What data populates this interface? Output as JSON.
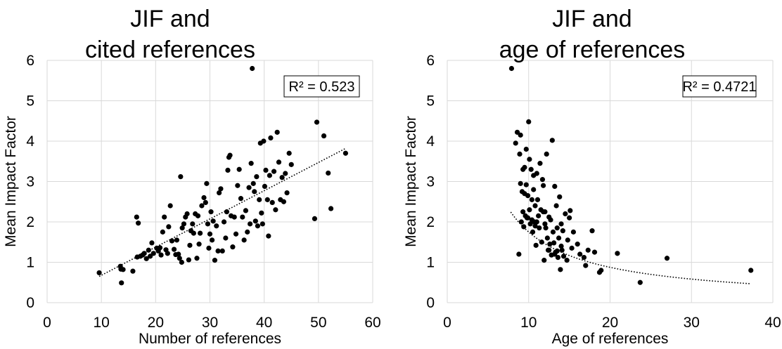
{
  "chart_data": [
    {
      "type": "scatter",
      "title_lines": [
        "JIF and",
        "cited references"
      ],
      "xlabel": "Number of references",
      "ylabel": "Mean Impact Factor",
      "xlim": [
        0,
        60
      ],
      "ylim": [
        0,
        6
      ],
      "x_ticks": [
        0,
        10,
        20,
        30,
        40,
        50,
        60
      ],
      "y_ticks": [
        0,
        1,
        2,
        3,
        4,
        5,
        6
      ],
      "grid": true,
      "r2_label": "R² = 0.523",
      "trendline": {
        "kind": "linear",
        "x_start": 9.6,
        "y_start": 0.65,
        "x_end": 55.0,
        "y_end": 3.82
      },
      "points": [
        [
          9.6,
          0.74
        ],
        [
          13.5,
          0.9
        ],
        [
          13.6,
          0.83
        ],
        [
          13.7,
          0.49
        ],
        [
          14.0,
          0.82
        ],
        [
          15.8,
          0.78
        ],
        [
          16.5,
          2.12
        ],
        [
          16.8,
          1.97
        ],
        [
          16.6,
          1.13
        ],
        [
          17.2,
          1.15
        ],
        [
          17.6,
          1.18
        ],
        [
          17.9,
          1.22
        ],
        [
          18.3,
          1.09
        ],
        [
          18.7,
          1.3
        ],
        [
          19.0,
          1.15
        ],
        [
          19.3,
          1.48
        ],
        [
          19.6,
          1.22
        ],
        [
          20.2,
          1.35
        ],
        [
          20.5,
          1.28
        ],
        [
          20.8,
          1.36
        ],
        [
          21.0,
          1.18
        ],
        [
          21.3,
          1.75
        ],
        [
          21.6,
          2.12
        ],
        [
          21.9,
          1.31
        ],
        [
          22.2,
          1.22
        ],
        [
          22.4,
          1.88
        ],
        [
          22.7,
          2.4
        ],
        [
          23.0,
          1.53
        ],
        [
          23.4,
          1.32
        ],
        [
          23.7,
          1.19
        ],
        [
          23.9,
          1.55
        ],
        [
          24.2,
          1.2
        ],
        [
          24.4,
          1.1
        ],
        [
          24.6,
          3.12
        ],
        [
          24.8,
          1.0
        ],
        [
          24.9,
          1.85
        ],
        [
          25.2,
          1.95
        ],
        [
          25.5,
          2.12
        ],
        [
          25.8,
          2.2
        ],
        [
          26.1,
          1.06
        ],
        [
          26.3,
          1.42
        ],
        [
          26.5,
          1.78
        ],
        [
          26.8,
          1.95
        ],
        [
          27.0,
          1.72
        ],
        [
          27.3,
          2.2
        ],
        [
          27.6,
          1.1
        ],
        [
          27.8,
          2.15
        ],
        [
          28.0,
          1.45
        ],
        [
          28.2,
          1.72
        ],
        [
          28.5,
          2.4
        ],
        [
          28.9,
          2.6
        ],
        [
          29.2,
          2.48
        ],
        [
          29.4,
          2.95
        ],
        [
          29.6,
          1.95
        ],
        [
          29.8,
          1.35
        ],
        [
          30.0,
          1.7
        ],
        [
          30.2,
          2.25
        ],
        [
          30.4,
          1.55
        ],
        [
          30.6,
          2.02
        ],
        [
          30.9,
          1.05
        ],
        [
          31.2,
          1.9
        ],
        [
          31.5,
          1.28
        ],
        [
          31.7,
          2.72
        ],
        [
          32.0,
          2.82
        ],
        [
          32.3,
          1.28
        ],
        [
          32.6,
          2.0
        ],
        [
          32.9,
          1.6
        ],
        [
          33.1,
          2.25
        ],
        [
          33.3,
          3.28
        ],
        [
          33.5,
          3.6
        ],
        [
          33.7,
          3.65
        ],
        [
          33.9,
          2.15
        ],
        [
          34.2,
          1.38
        ],
        [
          34.5,
          2.12
        ],
        [
          34.8,
          1.7
        ],
        [
          35.1,
          2.9
        ],
        [
          35.4,
          3.3
        ],
        [
          35.7,
          2.58
        ],
        [
          36.0,
          2.12
        ],
        [
          36.3,
          1.55
        ],
        [
          36.6,
          2.28
        ],
        [
          36.9,
          1.75
        ],
        [
          37.2,
          2.85
        ],
        [
          37.4,
          1.95
        ],
        [
          37.6,
          3.45
        ],
        [
          37.8,
          5.8
        ],
        [
          38.0,
          2.95
        ],
        [
          38.2,
          2.75
        ],
        [
          38.4,
          2.02
        ],
        [
          38.6,
          3.12
        ],
        [
          38.8,
          1.9
        ],
        [
          39.1,
          2.55
        ],
        [
          39.3,
          3.95
        ],
        [
          39.5,
          2.22
        ],
        [
          39.7,
          1.95
        ],
        [
          39.9,
          4.0
        ],
        [
          40.1,
          2.88
        ],
        [
          40.3,
          3.28
        ],
        [
          40.6,
          2.55
        ],
        [
          40.8,
          1.65
        ],
        [
          41.0,
          3.15
        ],
        [
          41.2,
          4.08
        ],
        [
          41.5,
          2.48
        ],
        [
          41.8,
          3.25
        ],
        [
          42.1,
          2.3
        ],
        [
          42.4,
          4.22
        ],
        [
          42.7,
          3.48
        ],
        [
          43.0,
          2.55
        ],
        [
          43.3,
          3.1
        ],
        [
          43.6,
          2.5
        ],
        [
          43.9,
          3.2
        ],
        [
          44.2,
          2.72
        ],
        [
          44.6,
          3.7
        ],
        [
          45.0,
          3.42
        ],
        [
          49.3,
          2.08
        ],
        [
          49.7,
          4.47
        ],
        [
          51.0,
          4.13
        ],
        [
          51.8,
          3.21
        ],
        [
          52.3,
          2.33
        ],
        [
          55.0,
          3.7
        ]
      ]
    },
    {
      "type": "scatter",
      "title_lines": [
        "JIF and",
        "age of references"
      ],
      "xlabel": "Age of references",
      "ylabel": "Mean Impact Factor",
      "xlim": [
        0,
        40
      ],
      "ylim": [
        0,
        6
      ],
      "x_ticks": [
        0,
        10,
        20,
        30,
        40
      ],
      "y_ticks": [
        0,
        1,
        2,
        3,
        4,
        5,
        6
      ],
      "grid": true,
      "r2_label": "R² = 0.4721",
      "trendline": {
        "kind": "power",
        "a": 17.5,
        "b": -1.0,
        "x_start": 7.8,
        "x_end": 37.3
      },
      "points": [
        [
          7.9,
          5.8
        ],
        [
          8.4,
          3.95
        ],
        [
          8.6,
          4.22
        ],
        [
          8.8,
          1.2
        ],
        [
          8.9,
          3.68
        ],
        [
          9.0,
          4.15
        ],
        [
          9.0,
          2.95
        ],
        [
          9.1,
          2.0
        ],
        [
          9.2,
          2.75
        ],
        [
          9.3,
          3.3
        ],
        [
          9.3,
          2.25
        ],
        [
          9.4,
          1.88
        ],
        [
          9.5,
          2.7
        ],
        [
          9.6,
          2.15
        ],
        [
          9.7,
          3.8
        ],
        [
          9.7,
          2.92
        ],
        [
          9.8,
          2.1
        ],
        [
          9.9,
          2.65
        ],
        [
          10.0,
          4.48
        ],
        [
          10.1,
          3.55
        ],
        [
          10.1,
          2.3
        ],
        [
          10.2,
          1.95
        ],
        [
          10.3,
          3.3
        ],
        [
          10.4,
          2.05
        ],
        [
          10.5,
          1.75
        ],
        [
          10.6,
          2.8
        ],
        [
          10.6,
          3.15
        ],
        [
          10.7,
          2.0
        ],
        [
          10.8,
          2.4
        ],
        [
          10.9,
          1.42
        ],
        [
          11.0,
          3.2
        ],
        [
          11.1,
          2.55
        ],
        [
          11.2,
          2.15
        ],
        [
          11.3,
          1.85
        ],
        [
          11.4,
          3.45
        ],
        [
          11.5,
          2.3
        ],
        [
          11.6,
          1.5
        ],
        [
          11.7,
          3.05
        ],
        [
          11.8,
          2.9
        ],
        [
          11.9,
          1.05
        ],
        [
          12.0,
          2.25
        ],
        [
          12.1,
          1.85
        ],
        [
          12.2,
          3.68
        ],
        [
          12.3,
          1.6
        ],
        [
          12.4,
          1.3
        ],
        [
          12.5,
          2.12
        ],
        [
          12.6,
          1.45
        ],
        [
          12.7,
          2.05
        ],
        [
          12.8,
          1.18
        ],
        [
          12.9,
          4.02
        ],
        [
          13.0,
          1.75
        ],
        [
          13.1,
          1.48
        ],
        [
          13.2,
          2.88
        ],
        [
          13.3,
          1.25
        ],
        [
          13.4,
          2.4
        ],
        [
          13.5,
          1.85
        ],
        [
          13.6,
          1.12
        ],
        [
          13.7,
          1.6
        ],
        [
          13.8,
          2.62
        ],
        [
          13.9,
          0.82
        ],
        [
          14.0,
          1.95
        ],
        [
          14.1,
          1.3
        ],
        [
          14.2,
          1.78
        ],
        [
          14.3,
          1.15
        ],
        [
          14.5,
          2.2
        ],
        [
          14.7,
          1.05
        ],
        [
          14.8,
          1.55
        ],
        [
          15.0,
          2.1
        ],
        [
          15.1,
          2.28
        ],
        [
          15.3,
          1.35
        ],
        [
          15.5,
          1.75
        ],
        [
          16.0,
          1.45
        ],
        [
          16.3,
          1.2
        ],
        [
          16.8,
          1.12
        ],
        [
          17.0,
          0.92
        ],
        [
          17.3,
          1.3
        ],
        [
          17.8,
          1.78
        ],
        [
          18.1,
          1.25
        ],
        [
          18.7,
          0.75
        ],
        [
          18.9,
          0.8
        ],
        [
          20.9,
          1.22
        ],
        [
          23.7,
          0.5
        ],
        [
          27.0,
          1.1
        ],
        [
          37.3,
          0.8
        ],
        [
          9.5,
          3.35
        ],
        [
          10.4,
          2.55
        ],
        [
          11.8,
          2.25
        ],
        [
          12.5,
          1.3
        ],
        [
          13.2,
          1.2
        ],
        [
          14.0,
          1.4
        ],
        [
          10.8,
          1.9
        ],
        [
          9.9,
          2.1
        ],
        [
          11.0,
          2.0
        ],
        [
          12.0,
          1.95
        ],
        [
          13.5,
          1.28
        ]
      ]
    }
  ]
}
